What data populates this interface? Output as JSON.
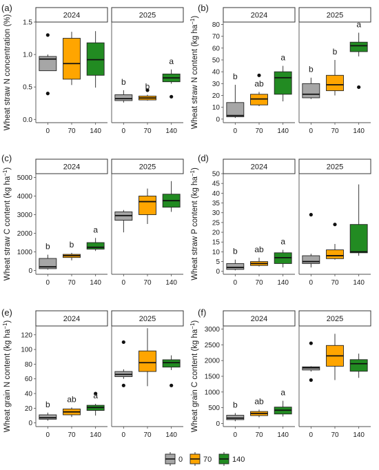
{
  "chart_data": [
    {
      "type": "box",
      "panel_label": "(a)",
      "ylabel": "Wheat straw N concentration (%)",
      "ylabel_sup": "",
      "ylabel_end": "",
      "ylim": [
        -0.05,
        1.5
      ],
      "yticks": [
        0.0,
        0.5,
        1.0,
        1.5
      ],
      "ytick_labels": [
        "0.0",
        "0.5",
        "1.0",
        "1.5"
      ],
      "categories": [
        "0",
        "70",
        "140"
      ],
      "facets": [
        {
          "name": "2024",
          "boxes": [
            {
              "q1": 0.75,
              "median": 0.93,
              "q3": 0.97,
              "wlo": 0.75,
              "whi": 1.0,
              "outliers": [
                0.4,
                1.3
              ]
            },
            {
              "q1": 0.62,
              "median": 0.86,
              "q3": 1.25,
              "wlo": 0.53,
              "whi": 1.35,
              "outliers": []
            },
            {
              "q1": 0.68,
              "median": 0.92,
              "q3": 1.18,
              "wlo": 0.49,
              "whi": 1.36,
              "outliers": []
            }
          ],
          "letters": [
            "",
            "",
            ""
          ]
        },
        {
          "name": "2025",
          "boxes": [
            {
              "q1": 0.29,
              "median": 0.32,
              "q3": 0.38,
              "wlo": 0.26,
              "whi": 0.45,
              "outliers": []
            },
            {
              "q1": 0.3,
              "median": 0.33,
              "q3": 0.36,
              "wlo": 0.29,
              "whi": 0.38,
              "outliers": [
                0.45
              ]
            },
            {
              "q1": 0.58,
              "median": 0.64,
              "q3": 0.7,
              "wlo": 0.55,
              "whi": 0.77,
              "outliers": [
                0.35
              ]
            }
          ],
          "letters": [
            "b",
            "b",
            "a"
          ]
        }
      ]
    },
    {
      "type": "box",
      "panel_label": "(b)",
      "ylabel": "Wheat straw N content (kg ha",
      "ylabel_sup": "−1",
      "ylabel_end": ")",
      "ylim": [
        -3,
        82
      ],
      "yticks": [
        0,
        10,
        20,
        30,
        40,
        50,
        60,
        70,
        80
      ],
      "ytick_labels": [
        "0",
        "10",
        "20",
        "30",
        "40",
        "50",
        "60",
        "70",
        "80"
      ],
      "categories": [
        "0",
        "70",
        "140"
      ],
      "facets": [
        {
          "name": "2024",
          "boxes": [
            {
              "q1": 2,
              "median": 3,
              "q3": 14,
              "wlo": 1,
              "whi": 29,
              "outliers": []
            },
            {
              "q1": 12,
              "median": 17,
              "q3": 21,
              "wlo": 11,
              "whi": 23,
              "outliers": [
                37
              ]
            },
            {
              "q1": 21,
              "median": 35,
              "q3": 40,
              "wlo": 15,
              "whi": 45,
              "outliers": []
            }
          ],
          "letters": [
            "b",
            "ab",
            "a"
          ]
        },
        {
          "name": "2025",
          "boxes": [
            {
              "q1": 18,
              "median": 21,
              "q3": 30,
              "wlo": 17,
              "whi": 35,
              "outliers": []
            },
            {
              "q1": 24,
              "median": 29,
              "q3": 37,
              "wlo": 20,
              "whi": 50,
              "outliers": []
            },
            {
              "q1": 57,
              "median": 62,
              "q3": 65,
              "wlo": 53,
              "whi": 73,
              "outliers": [
                27
              ]
            }
          ],
          "letters": [
            "b",
            "b",
            "a"
          ]
        }
      ]
    },
    {
      "type": "box",
      "panel_label": "(c)",
      "ylabel": "Wheat straw C content (kg ha",
      "ylabel_sup": "−1",
      "ylabel_end": ")",
      "ylim": [
        -200,
        5200
      ],
      "yticks": [
        0,
        1000,
        2000,
        3000,
        4000,
        5000
      ],
      "ytick_labels": [
        "0",
        "1000",
        "2000",
        "3000",
        "4000",
        "5000"
      ],
      "categories": [
        "0",
        "70",
        "140"
      ],
      "facets": [
        {
          "name": "2024",
          "boxes": [
            {
              "q1": 100,
              "median": 200,
              "q3": 650,
              "wlo": 50,
              "whi": 850,
              "outliers": []
            },
            {
              "q1": 700,
              "median": 800,
              "q3": 870,
              "wlo": 550,
              "whi": 950,
              "outliers": []
            },
            {
              "q1": 1150,
              "median": 1250,
              "q3": 1500,
              "wlo": 1050,
              "whi": 1750,
              "outliers": []
            }
          ],
          "letters": [
            "b",
            "b",
            "a"
          ]
        },
        {
          "name": "2025",
          "boxes": [
            {
              "q1": 2700,
              "median": 2950,
              "q3": 3150,
              "wlo": 2050,
              "whi": 3250,
              "outliers": []
            },
            {
              "q1": 3000,
              "median": 3700,
              "q3": 4000,
              "wlo": 2500,
              "whi": 4400,
              "outliers": []
            },
            {
              "q1": 3400,
              "median": 3750,
              "q3": 4100,
              "wlo": 3150,
              "whi": 4800,
              "outliers": []
            }
          ],
          "letters": [
            "",
            "",
            ""
          ]
        }
      ]
    },
    {
      "type": "box",
      "panel_label": "(d)",
      "ylabel": "Wheat straw P content (kg ha",
      "ylabel_sup": "−1",
      "ylabel_end": ")",
      "ylim": [
        -1.5,
        50
      ],
      "yticks": [
        0,
        5,
        10,
        15,
        20,
        25,
        30,
        35,
        40,
        45,
        50
      ],
      "ytick_labels": [
        "0",
        "5",
        "10",
        "15",
        "20",
        "25",
        "30",
        "35",
        "40",
        "45",
        "50"
      ],
      "categories": [
        "0",
        "70",
        "140"
      ],
      "facets": [
        {
          "name": "2024",
          "boxes": [
            {
              "q1": 1,
              "median": 2,
              "q3": 4,
              "wlo": 0.5,
              "whi": 6,
              "outliers": []
            },
            {
              "q1": 3,
              "median": 4,
              "q3": 5,
              "wlo": 2.5,
              "whi": 7,
              "outliers": []
            },
            {
              "q1": 4,
              "median": 7,
              "q3": 9.5,
              "wlo": 2,
              "whi": 11,
              "outliers": []
            }
          ],
          "letters": [
            "b",
            "ab",
            "a"
          ]
        },
        {
          "name": "2025",
          "boxes": [
            {
              "q1": 4,
              "median": 5,
              "q3": 8,
              "wlo": 2,
              "whi": 9,
              "outliers": [
                29
              ]
            },
            {
              "q1": 6.5,
              "median": 8,
              "q3": 11,
              "wlo": 6,
              "whi": 14,
              "outliers": [
                24
              ]
            },
            {
              "q1": 9.5,
              "median": 10,
              "q3": 24,
              "wlo": 8,
              "whi": 44.5,
              "outliers": []
            }
          ],
          "letters": [
            "",
            "",
            ""
          ]
        }
      ]
    },
    {
      "type": "box",
      "panel_label": "(e)",
      "ylabel": "Wheat grain N content (kg ha",
      "ylabel_sup": "−1",
      "ylabel_end": ")",
      "ylim": [
        -5,
        132
      ],
      "yticks": [
        0,
        20,
        40,
        60,
        80,
        100,
        120
      ],
      "ytick_labels": [
        "0",
        "20",
        "40",
        "60",
        "80",
        "100",
        "120"
      ],
      "categories": [
        "0",
        "70",
        "140"
      ],
      "facets": [
        {
          "name": "2024",
          "boxes": [
            {
              "q1": 5,
              "median": 7,
              "q3": 11,
              "wlo": 3,
              "whi": 14,
              "outliers": []
            },
            {
              "q1": 11,
              "median": 15,
              "q3": 19,
              "wlo": 8,
              "whi": 21,
              "outliers": []
            },
            {
              "q1": 17,
              "median": 21,
              "q3": 24,
              "wlo": 10,
              "whi": 26,
              "outliers": [
                40
              ]
            }
          ],
          "letters": [
            "b",
            "ab",
            "a"
          ]
        },
        {
          "name": "2025",
          "boxes": [
            {
              "q1": 63,
              "median": 66,
              "q3": 70,
              "wlo": 60,
              "whi": 73,
              "outliers": [
                51,
                110
              ]
            },
            {
              "q1": 70,
              "median": 82,
              "q3": 98,
              "wlo": 50,
              "whi": 129,
              "outliers": []
            },
            {
              "q1": 76,
              "median": 82,
              "q3": 86,
              "wlo": 72,
              "whi": 92,
              "outliers": [
                51
              ]
            }
          ],
          "letters": [
            "",
            "",
            ""
          ]
        }
      ]
    },
    {
      "type": "box",
      "panel_label": "(f)",
      "ylabel": "Wheat grain C content (kg ha",
      "ylabel_sup": "−1",
      "ylabel_end": ")",
      "ylim": [
        -100,
        3100
      ],
      "yticks": [
        0,
        500,
        1000,
        1500,
        2000,
        2500,
        3000
      ],
      "ytick_labels": [
        "0",
        "500",
        "1000",
        "1500",
        "2000",
        "2500",
        "3000"
      ],
      "categories": [
        "0",
        "70",
        "140"
      ],
      "facets": [
        {
          "name": "2024",
          "boxes": [
            {
              "q1": 120,
              "median": 170,
              "q3": 260,
              "wlo": 70,
              "whi": 330,
              "outliers": []
            },
            {
              "q1": 250,
              "median": 320,
              "q3": 380,
              "wlo": 200,
              "whi": 440,
              "outliers": []
            },
            {
              "q1": 300,
              "median": 420,
              "q3": 520,
              "wlo": 220,
              "whi": 720,
              "outliers": []
            }
          ],
          "letters": [
            "b",
            "ab",
            "a"
          ]
        },
        {
          "name": "2025",
          "boxes": [
            {
              "q1": 1700,
              "median": 1770,
              "q3": 1800,
              "wlo": 1650,
              "whi": 1820,
              "outliers": [
                1380,
                2550
              ]
            },
            {
              "q1": 1820,
              "median": 2150,
              "q3": 2480,
              "wlo": 1380,
              "whi": 2850,
              "outliers": []
            },
            {
              "q1": 1660,
              "median": 1900,
              "q3": 2030,
              "wlo": 1450,
              "whi": 2220,
              "outliers": []
            }
          ],
          "letters": [
            "",
            "",
            ""
          ]
        }
      ]
    }
  ],
  "legend": {
    "position": "bottom",
    "items": [
      {
        "label": "0",
        "color": "#A6A6A6"
      },
      {
        "label": "70",
        "color": "#FFA500"
      },
      {
        "label": "140",
        "color": "#228B22"
      }
    ]
  },
  "colors": {
    "fills": [
      "#A6A6A6",
      "#FFA500",
      "#228B22"
    ],
    "axis": "#4d4d4d",
    "ink": "#1a1a1a"
  }
}
